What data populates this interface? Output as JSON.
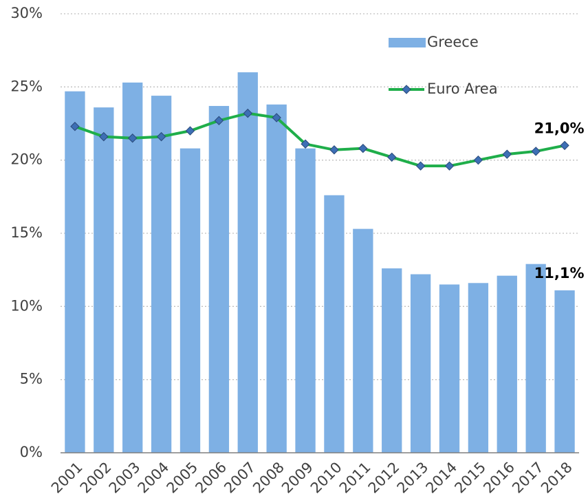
{
  "chart_data": {
    "type": "bar",
    "categories": [
      "2001",
      "2002",
      "2003",
      "2004",
      "2005",
      "2006",
      "2007",
      "2008",
      "2009",
      "2010",
      "2011",
      "2012",
      "2013",
      "2014",
      "2015",
      "2016",
      "2017",
      "2018"
    ],
    "series": [
      {
        "name": "Greece",
        "type": "bar",
        "color": "#7eb0e4",
        "values": [
          24.7,
          23.6,
          25.3,
          24.4,
          20.8,
          23.7,
          26.0,
          23.8,
          20.8,
          17.6,
          15.3,
          12.6,
          12.2,
          11.5,
          11.6,
          12.1,
          12.9,
          11.1
        ],
        "value_labels": [
          null,
          null,
          null,
          null,
          null,
          null,
          null,
          null,
          null,
          null,
          null,
          null,
          null,
          null,
          null,
          null,
          null,
          "11,1%"
        ]
      },
      {
        "name": "Euro Area",
        "type": "line",
        "color": "#1fae4a",
        "marker_color": "#3d6fb5",
        "values": [
          22.3,
          21.6,
          21.5,
          21.6,
          22.0,
          22.7,
          23.2,
          22.9,
          21.1,
          20.7,
          20.8,
          20.2,
          19.6,
          19.6,
          20.0,
          20.4,
          20.6,
          21.0
        ],
        "value_labels": [
          null,
          null,
          null,
          null,
          null,
          null,
          null,
          null,
          null,
          null,
          null,
          null,
          null,
          null,
          null,
          null,
          null,
          "21,0%"
        ]
      }
    ],
    "ylim": [
      0,
      30
    ],
    "yticks": [
      {
        "value": 0,
        "label": "0%"
      },
      {
        "value": 5,
        "label": "5%"
      },
      {
        "value": 10,
        "label": "10%"
      },
      {
        "value": 15,
        "label": "15%"
      },
      {
        "value": 20,
        "label": "20%"
      },
      {
        "value": 25,
        "label": "25%"
      },
      {
        "value": 30,
        "label": "30%"
      }
    ],
    "grid": true,
    "legend": "upper right"
  }
}
